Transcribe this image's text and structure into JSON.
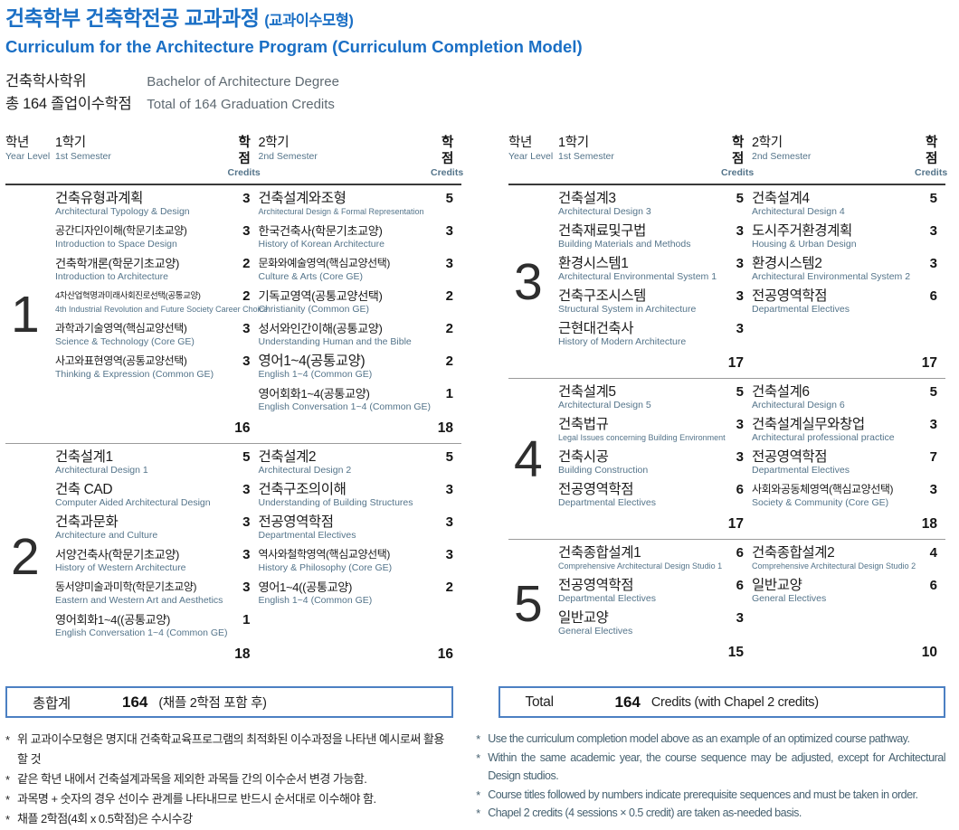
{
  "header": {
    "title_ko": "건축학부 건축학전공 교과과정",
    "title_paren": "(교과이수모형)",
    "title_en": "Curriculum for the Architecture Program (Curriculum Completion Model)",
    "degree_ko": "건축학사학위",
    "degree_en": "Bachelor of Architecture Degree",
    "credits_ko": "총 164 졸업이수학점",
    "credits_en": "Total of 164 Graduation Credits"
  },
  "table_headers": {
    "year_ko": "학년",
    "year_en": "Year Level",
    "sem1_ko": "1학기",
    "sem1_en": "1st Semester",
    "credits_ko": "학점",
    "credits_en": "Credits",
    "sem2_ko": "2학기",
    "sem2_en": "2nd Semester"
  },
  "columns": {
    "left": [
      {
        "year": "1",
        "sem1_total": "16",
        "sem2_total": "18",
        "rows": [
          {
            "s1": {
              "ko": "건축유형과계획",
              "en": "Architectural Typology & Design",
              "cr": "3"
            },
            "s2": {
              "ko": "건축설계와조형",
              "en": "Architectural Design & Formal Representation",
              "cr": "5"
            }
          },
          {
            "s1": {
              "ko": "공간디자인이해(학문기초교양)",
              "en": "Introduction to Space Design",
              "cr": "3"
            },
            "s2": {
              "ko": "한국건축사(학문기초교양)",
              "en": "History of Korean Architecture",
              "cr": "3"
            }
          },
          {
            "s1": {
              "ko": "건축학개론(학문기초교양)",
              "en": "Introduction to Architecture",
              "cr": "2"
            },
            "s2": {
              "ko": "문화와예술영역(핵심교양선택)",
              "en": "Culture & Arts (Core GE)",
              "cr": "3"
            }
          },
          {
            "s1": {
              "ko": "4차산업혁명과미래사회진로선택(공통교양)",
              "en": "4th Industrial Revolution and Future Society Career Choice",
              "cr": "2"
            },
            "s2": {
              "ko": "기독교영역(공통교양선택)",
              "en": "Christianity (Common GE)",
              "cr": "2"
            }
          },
          {
            "s1": {
              "ko": "과학과기술영역(핵심교양선택)",
              "en": "Science & Technology (Core GE)",
              "cr": "3"
            },
            "s2": {
              "ko": "성서와인간이해(공통교양)",
              "en": "Understanding Human and the Bible",
              "cr": "2"
            }
          },
          {
            "s1": {
              "ko": "사고와표현영역(공통교양선택)",
              "en": "Thinking & Expression (Common GE)",
              "cr": "3"
            },
            "s2": {
              "ko": "영어1~4(공통교양)",
              "en": "English 1~4 (Common GE)",
              "cr": "2"
            }
          },
          {
            "s1": null,
            "s2": {
              "ko": "영어회화1~4(공통교양)",
              "en": "English Conversation 1~4 (Common GE)",
              "cr": "1"
            }
          }
        ]
      },
      {
        "year": "2",
        "sem1_total": "18",
        "sem2_total": "16",
        "rows": [
          {
            "s1": {
              "ko": "건축설계1",
              "en": "Architectural Design 1",
              "cr": "5"
            },
            "s2": {
              "ko": "건축설계2",
              "en": "Architectural Design 2",
              "cr": "5"
            }
          },
          {
            "s1": {
              "ko": "건축 CAD",
              "en": "Computer Aided Architectural Design",
              "cr": "3"
            },
            "s2": {
              "ko": "건축구조의이해",
              "en": "Understanding of Building Structures",
              "cr": "3"
            }
          },
          {
            "s1": {
              "ko": "건축과문화",
              "en": "Architecture and Culture",
              "cr": "3"
            },
            "s2": {
              "ko": "전공영역학점",
              "en": "Departmental Electives",
              "cr": "3"
            }
          },
          {
            "s1": {
              "ko": "서양건축사(학문기초교양)",
              "en": "History of Western Architecture",
              "cr": "3"
            },
            "s2": {
              "ko": "역사와철학영역(핵심교양선택)",
              "en": "History & Philosophy (Core GE)",
              "cr": "3"
            }
          },
          {
            "s1": {
              "ko": "동서양미술과미학(학문기초교양)",
              "en": "Eastern and Western Art and Aesthetics",
              "cr": "3"
            },
            "s2": {
              "ko": "영어1~4((공통교양)",
              "en": "English 1~4 (Common GE)",
              "cr": "2"
            }
          },
          {
            "s1": {
              "ko": "영어회화1~4((공통교양)",
              "en": "English Conversation 1~4 (Common GE)",
              "cr": "1"
            },
            "s2": null
          }
        ]
      }
    ],
    "right": [
      {
        "year": "3",
        "sem1_total": "17",
        "sem2_total": "17",
        "rows": [
          {
            "s1": {
              "ko": "건축설계3",
              "en": "Architectural Design 3",
              "cr": "5"
            },
            "s2": {
              "ko": "건축설계4",
              "en": "Architectural Design 4",
              "cr": "5"
            }
          },
          {
            "s1": {
              "ko": "건축재료및구법",
              "en": "Building Materials and Methods",
              "cr": "3"
            },
            "s2": {
              "ko": "도시주거환경계획",
              "en": "Housing & Urban Design",
              "cr": "3"
            }
          },
          {
            "s1": {
              "ko": "환경시스템1",
              "en": "Architectural Environmental System 1",
              "cr": "3"
            },
            "s2": {
              "ko": "환경시스템2",
              "en": "Architectural Environmental System 2",
              "cr": "3"
            }
          },
          {
            "s1": {
              "ko": "건축구조시스템",
              "en": "Structural System in Architecture",
              "cr": "3"
            },
            "s2": {
              "ko": "전공영역학점",
              "en": "Departmental Electives",
              "cr": "6"
            }
          },
          {
            "s1": {
              "ko": "근현대건축사",
              "en": "History of Modern Architecture",
              "cr": "3"
            },
            "s2": null
          }
        ]
      },
      {
        "year": "4",
        "sem1_total": "17",
        "sem2_total": "18",
        "rows": [
          {
            "s1": {
              "ko": "건축설계5",
              "en": "Architectural Design 5",
              "cr": "5"
            },
            "s2": {
              "ko": "건축설계6",
              "en": "Architectural Design 6",
              "cr": "5"
            }
          },
          {
            "s1": {
              "ko": "건축법규",
              "en": "Legal Issues concerning Building Environment",
              "cr": "3"
            },
            "s2": {
              "ko": "건축설계실무와창업",
              "en": "Architectural professional practice",
              "cr": "3"
            }
          },
          {
            "s1": {
              "ko": "건축시공",
              "en": "Building Construction",
              "cr": "3"
            },
            "s2": {
              "ko": "전공영역학점",
              "en": "Departmental Electives",
              "cr": "7"
            }
          },
          {
            "s1": {
              "ko": "전공영역학점",
              "en": "Departmental Electives",
              "cr": "6"
            },
            "s2": {
              "ko": "사회와공동체영역(핵심교양선택)",
              "en": "Society & Community (Core GE)",
              "cr": "3"
            }
          }
        ]
      },
      {
        "year": "5",
        "sem1_total": "15",
        "sem2_total": "10",
        "rows": [
          {
            "s1": {
              "ko": "건축종합설계1",
              "en": "Comprehensive Architectural Design Studio 1",
              "cr": "6"
            },
            "s2": {
              "ko": "건축종합설계2",
              "en": "Comprehensive Architectural Design Studio 2",
              "cr": "4"
            }
          },
          {
            "s1": {
              "ko": "전공영역학점",
              "en": "Departmental Electives",
              "cr": "6"
            },
            "s2": {
              "ko": "일반교양",
              "en": "General Electives",
              "cr": "6"
            }
          },
          {
            "s1": {
              "ko": "일반교양",
              "en": "General Electives",
              "cr": "3"
            },
            "s2": null
          }
        ]
      }
    ]
  },
  "grand_totals": {
    "left": {
      "label": "총합계",
      "value": "164",
      "note": "(채플 2학점 포함 후)"
    },
    "right": {
      "label": "Total",
      "value": "164",
      "note": "Credits (with Chapel 2 credits)"
    }
  },
  "footnotes": {
    "left": [
      "위 교과이수모형은 명지대 건축학교육프로그램의 최적화된 이수과정을 나타낸 예시로써 활용할 것",
      "같은 학년 내에서 건축설계과목을 제외한 과목들 간의 이수순서 변경 가능함.",
      "과목명 + 숫자의 경우 선이수 관계를 나타내므로 반드시 순서대로 이수해야 함.",
      "채플 2학점(4회 x 0.5학점)은 수시수강"
    ],
    "right": [
      "Use the curriculum completion model above as an example of an optimized course pathway.",
      "Within the same academic year, the course sequence may be adjusted, except for Architectural Design studios.",
      "Course titles followed by numbers indicate prerequisite sequences and must be taken in order.",
      "Chapel 2 credits (4 sessions × 0.5 credit) are taken as-needed basis."
    ]
  },
  "colors": {
    "accent_blue": "#1a6fc5",
    "box_border_blue": "#4c80c3",
    "subtext_slate": "#54748a"
  }
}
